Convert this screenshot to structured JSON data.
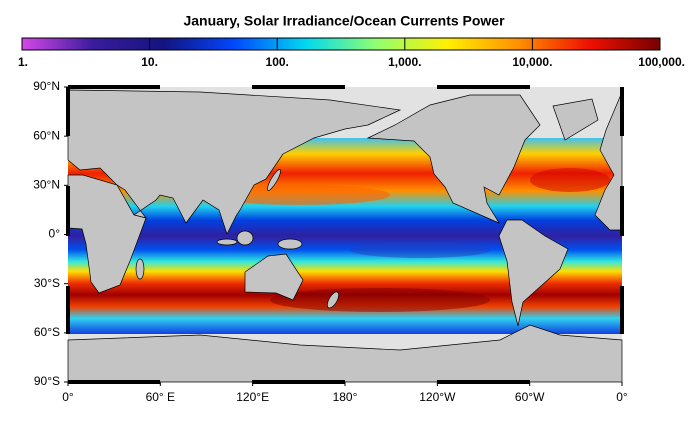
{
  "title": "January, Solar Irradiance/Ocean Currents Power",
  "colorbar": {
    "scale": "log",
    "lim": [
      1,
      100000
    ],
    "ticks": [
      {
        "value": 1,
        "label": "1."
      },
      {
        "value": 10,
        "label": "10."
      },
      {
        "value": 100,
        "label": "100."
      },
      {
        "value": 1000,
        "label": "1,000."
      },
      {
        "value": 10000,
        "label": "10,000."
      },
      {
        "value": 100000,
        "label": "100,000."
      }
    ],
    "colors": [
      "#d448e8",
      "#3a1c9c",
      "#141480",
      "#0048ff",
      "#00d8f0",
      "#90ff70",
      "#fff000",
      "#ff9000",
      "#f01000",
      "#780000"
    ]
  },
  "map": {
    "lat_ticks": [
      {
        "value": 90,
        "label": "90°N"
      },
      {
        "value": 60,
        "label": "60°N"
      },
      {
        "value": 30,
        "label": "30°N"
      },
      {
        "value": 0,
        "label": "0°"
      },
      {
        "value": -30,
        "label": "30°S"
      },
      {
        "value": -60,
        "label": "60°S"
      },
      {
        "value": -90,
        "label": "90°S"
      }
    ],
    "lon_ticks": [
      {
        "value": 0,
        "label": "0°"
      },
      {
        "value": 60,
        "label": "60° E"
      },
      {
        "value": 120,
        "label": "120°E"
      },
      {
        "value": 180,
        "label": "180°"
      },
      {
        "value": 240,
        "label": "120°W"
      },
      {
        "value": 300,
        "label": "60°W"
      },
      {
        "value": 360,
        "label": "0°"
      }
    ]
  }
}
